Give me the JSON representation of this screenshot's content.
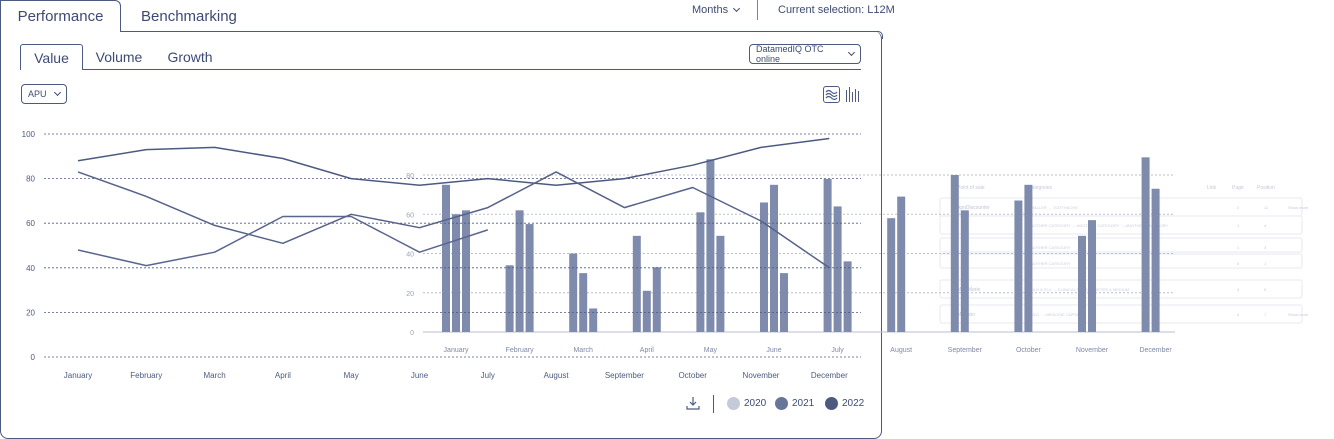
{
  "header": {
    "tabs": [
      {
        "label": "Performance",
        "active": true
      },
      {
        "label": "Benchmarking",
        "active": false
      }
    ],
    "period_select": "Months",
    "current_selection": "Current selection: L12M"
  },
  "panel": {
    "subtabs": [
      {
        "label": "Value",
        "active": true
      },
      {
        "label": "Volume",
        "active": false
      },
      {
        "label": "Growth",
        "active": false
      }
    ],
    "source_select": "DatamedIQ OTC online",
    "metric_select": "APU",
    "view_toggles": [
      "wave-chart-icon",
      "bar-chart-icon"
    ]
  },
  "chart_data": [
    {
      "type": "line",
      "ylim": [
        0,
        100
      ],
      "yticks": [
        "0",
        "20",
        "40",
        "60",
        "80",
        "100"
      ],
      "categories": [
        "January",
        "February",
        "March",
        "April",
        "May",
        "June",
        "July",
        "August",
        "September",
        "October",
        "November",
        "December"
      ],
      "series": [
        {
          "name": "2020",
          "values": [
            88,
            93,
            94,
            89,
            80,
            77,
            80,
            77,
            80,
            86,
            94,
            98
          ]
        },
        {
          "name": "2021",
          "values": [
            83,
            72,
            59,
            51,
            64,
            58,
            67,
            83,
            67,
            76,
            61,
            40
          ]
        },
        {
          "name": "2022",
          "values": [
            48,
            41,
            47,
            63,
            63,
            47,
            57,
            null,
            null,
            null,
            null,
            null
          ]
        }
      ],
      "grid": true,
      "legend": "bottom-right"
    },
    {
      "type": "bar",
      "ylim": [
        0,
        80
      ],
      "yticks": [
        "0",
        "20",
        "40",
        "60",
        "80"
      ],
      "categories": [
        "January",
        "February",
        "March",
        "April",
        "May",
        "June",
        "July",
        "August",
        "September",
        "October",
        "November",
        "December"
      ],
      "series": [
        {
          "values": [
            75,
            34,
            40,
            49,
            61,
            66,
            78,
            58,
            80,
            67,
            49,
            89
          ]
        },
        {
          "values": [
            60,
            62,
            30,
            21,
            88,
            75,
            64,
            69,
            62,
            75,
            57,
            73
          ]
        },
        {
          "values": [
            62,
            55,
            12,
            33,
            49,
            30,
            36,
            null,
            null,
            null,
            null,
            null
          ]
        }
      ]
    }
  ],
  "legend": {
    "items": [
      {
        "label": "2020",
        "color": "#c5cada"
      },
      {
        "label": "2021",
        "color": "#68759b"
      },
      {
        "label": "2022",
        "color": "#4d5a80"
      }
    ]
  },
  "ghost_table": {
    "headers": [
      "Point of sale",
      "Categories",
      "Link",
      "Page",
      "Position"
    ],
    "rows": [
      {
        "pos": "ApoDiscounter",
        "cats": "SMALLER → TOOTHACHE",
        "page": "2",
        "position": "11",
        "more": "Show more"
      },
      {
        "pos": "",
        "cats": "ANOTHER CATEGORY → ANOTHER CATEGORY → ANOTHER CATEGORY",
        "page": "1",
        "position": "4",
        "more": ""
      },
      {
        "pos": "",
        "cats": "ANOTHER CATEGORY",
        "page": "1",
        "position": "3",
        "more": ""
      },
      {
        "pos": "",
        "cats": "ANOTHER CATEGORY",
        "page": "6",
        "position": "1",
        "more": ""
      },
      {
        "pos": "MediMarie",
        "cats": "COLD & FLU → CLINICAL THERMOMETER & MEDIUM",
        "page": "4",
        "position": "5",
        "more": ""
      },
      {
        "pos": "Medpon",
        "cats": "COLD → MEDICINE CAPSULE",
        "page": "4",
        "position": "7",
        "more": "Show more"
      }
    ]
  }
}
